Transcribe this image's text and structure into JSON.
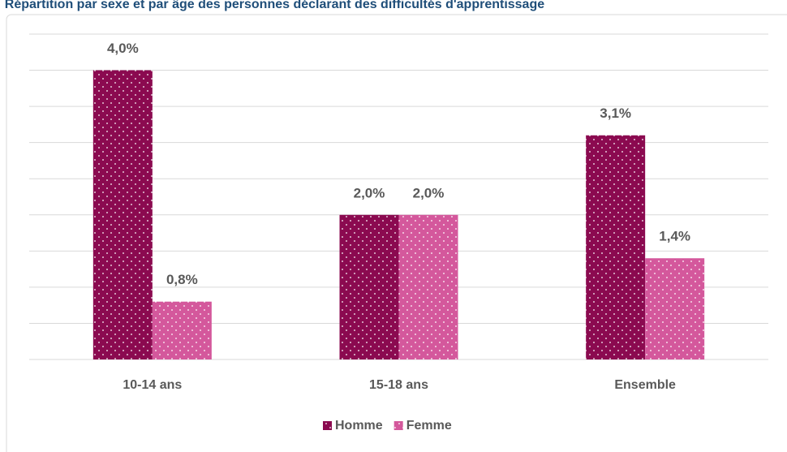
{
  "chart_data": {
    "type": "bar",
    "title": ": Répartition par sexe et par âge des personnes déclarant des difficultés d'apprentissage",
    "categories": [
      "10-14 ans",
      "15-18 ans",
      "Ensemble"
    ],
    "series": [
      {
        "name": "Homme",
        "color": "#8b0a50",
        "values": [
          4.0,
          2.0,
          3.1
        ],
        "value_labels": [
          "4,0%",
          "2,0%",
          "3,1%"
        ]
      },
      {
        "name": "Femme",
        "color": "#d4589c",
        "values": [
          0.8,
          2.0,
          1.4
        ],
        "value_labels": [
          "0,8%",
          "2,0%",
          "1,4%"
        ]
      }
    ],
    "ylim": [
      0,
      4.5
    ],
    "yticks": [
      0,
      0.5,
      1,
      1.5,
      2,
      2.5,
      3,
      3.5,
      4,
      4.5
    ],
    "grid": true,
    "legend": "bottom"
  }
}
